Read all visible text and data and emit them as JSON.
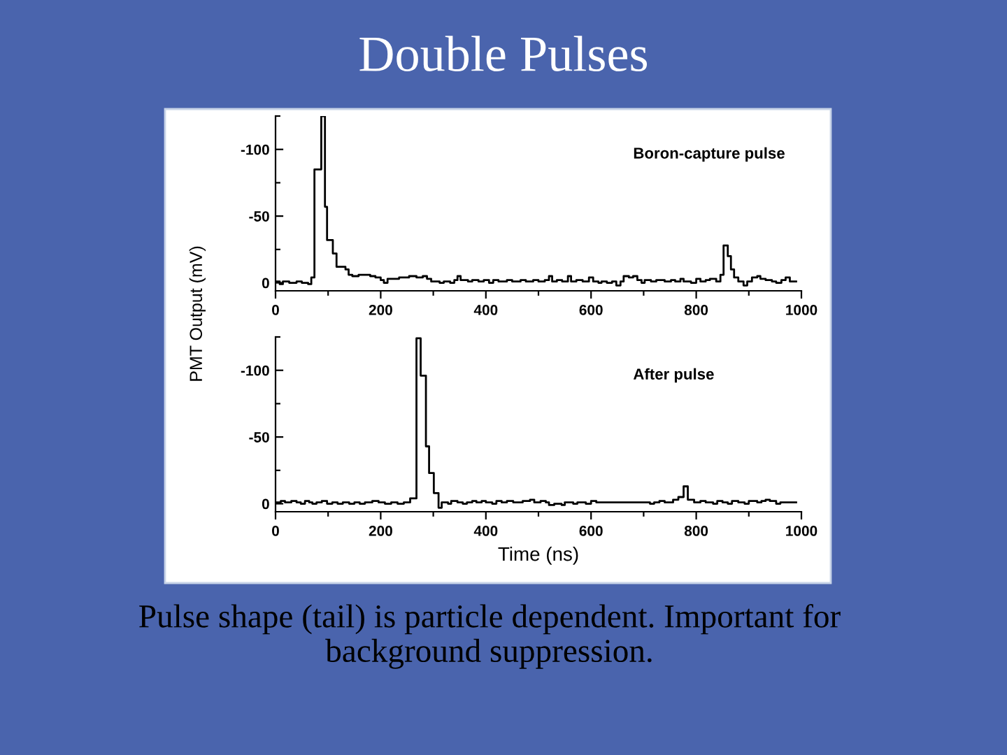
{
  "chart_data": [
    {
      "type": "step",
      "title": "Double Pulses",
      "ylabel": "PMT Output (mV)",
      "annotations": [
        "Boron-capture pulse"
      ],
      "color": "#000000",
      "x": [
        0,
        8,
        14,
        26,
        40,
        50,
        62,
        68,
        74,
        87,
        94,
        98,
        109,
        116,
        133,
        139,
        146,
        158,
        180,
        190,
        200,
        206,
        213,
        235,
        254,
        268,
        280,
        288,
        296,
        312,
        320,
        332,
        340,
        346,
        352,
        366,
        374,
        386,
        396,
        406,
        414,
        424,
        440,
        450,
        466,
        476,
        490,
        500,
        512,
        520,
        526,
        535,
        545,
        556,
        562,
        572,
        584,
        596,
        604,
        614,
        620,
        630,
        640,
        648,
        656,
        662,
        672,
        680,
        688,
        696,
        702,
        714,
        724,
        740,
        752,
        760,
        770,
        776,
        790,
        800,
        808,
        818,
        826,
        838,
        846,
        852,
        860,
        866,
        872,
        880,
        890,
        897,
        906,
        916,
        922,
        932,
        944,
        952,
        962,
        970,
        978,
        990
      ],
      "values": [
        -1,
        1,
        -1,
        0,
        -1,
        0,
        1,
        -4,
        -85,
        -125,
        -57,
        -32,
        -22,
        -12,
        -10,
        -6,
        -5,
        -6,
        -5,
        -4,
        -2,
        0,
        -3,
        -4,
        -5,
        -4,
        -5,
        -3,
        -1,
        0,
        -1,
        0,
        -2,
        -5,
        -2,
        -1,
        -2,
        -1,
        -2,
        0,
        -2,
        -1,
        -2,
        -1,
        -2,
        -1,
        -2,
        -1,
        -2,
        -5,
        -1,
        -2,
        -1,
        -5,
        -1,
        -2,
        -1,
        -4,
        -1,
        0,
        -1,
        0,
        -1,
        2,
        -1,
        -5,
        -4,
        -5,
        -2,
        0,
        -2,
        -1,
        -2,
        -1,
        -2,
        -1,
        -3,
        -1,
        0,
        -3,
        -1,
        -2,
        -3,
        -1,
        -6,
        -28,
        -20,
        -10,
        -4,
        -1,
        2,
        -1,
        -4,
        -5,
        -3,
        -2,
        -1,
        0,
        -2,
        -4,
        -1,
        -1
      ],
      "xlim": [
        0,
        1000
      ],
      "xticks": [
        0,
        {
          "value": 100,
          "label": null
        },
        200,
        {
          "value": 300,
          "label": null
        },
        400,
        {
          "value": 500,
          "label": null
        },
        600,
        {
          "value": 700,
          "label": null
        },
        800,
        {
          "value": 900,
          "label": null
        },
        1000
      ],
      "ylim": [
        6,
        -125
      ],
      "yticks": [
        {
          "value": -125,
          "label": null
        },
        -100,
        {
          "value": -75,
          "label": null
        },
        -50,
        {
          "value": -25,
          "label": null
        },
        0
      ]
    },
    {
      "type": "step",
      "xlabel": "Time (ns)",
      "annotations": [
        "After pulse",
        "Pulse shape (tail) is particle dependent. Important for background suppression."
      ],
      "color": "#000000",
      "x": [
        0,
        10,
        18,
        30,
        40,
        48,
        56,
        64,
        70,
        78,
        88,
        98,
        108,
        118,
        128,
        140,
        150,
        160,
        170,
        184,
        196,
        208,
        220,
        232,
        244,
        256,
        268,
        276,
        286,
        292,
        301,
        310,
        316,
        328,
        334,
        346,
        356,
        364,
        374,
        382,
        392,
        400,
        412,
        420,
        430,
        440,
        452,
        470,
        484,
        492,
        504,
        514,
        520,
        530,
        544,
        550,
        566,
        574,
        590,
        600,
        610,
        640,
        700,
        712,
        720,
        730,
        740,
        756,
        766,
        776,
        784,
        796,
        808,
        818,
        832,
        840,
        850,
        860,
        868,
        880,
        892,
        900,
        916,
        924,
        932,
        940,
        952,
        960,
        990
      ],
      "values": [
        -1,
        -2,
        -1,
        -2,
        -1,
        0,
        -2,
        -1,
        0,
        -1,
        -2,
        0,
        -1,
        0,
        -1,
        0,
        -1,
        0,
        -1,
        -2,
        -1,
        0,
        -1,
        0,
        -1,
        -4,
        -124,
        -96,
        -43,
        -23,
        -8,
        3,
        -1,
        0,
        -2,
        -1,
        0,
        -1,
        -2,
        -1,
        -2,
        -1,
        0,
        -2,
        -1,
        -2,
        -1,
        -2,
        -3,
        -1,
        -2,
        -1,
        1,
        0,
        1,
        -1,
        0,
        -1,
        0,
        -2,
        -1,
        -1,
        -1,
        0,
        -1,
        -2,
        -1,
        -3,
        -5,
        -13,
        -3,
        -1,
        -2,
        -1,
        0,
        -2,
        -1,
        0,
        -2,
        -1,
        0,
        -2,
        -1,
        -2,
        -3,
        -2,
        0,
        -1,
        -1
      ],
      "xlim": [
        0,
        1000
      ],
      "xticks": [
        0,
        {
          "value": 100,
          "label": null
        },
        200,
        {
          "value": 300,
          "label": null
        },
        400,
        {
          "value": 500,
          "label": null
        },
        600,
        {
          "value": 700,
          "label": null
        },
        800,
        {
          "value": 900,
          "label": null
        },
        1000
      ],
      "ylim": [
        6,
        -125
      ],
      "yticks": [
        {
          "value": -125,
          "label": null
        },
        -100,
        {
          "value": -75,
          "label": null
        },
        -50,
        {
          "value": -25,
          "label": null
        },
        0
      ]
    }
  ]
}
